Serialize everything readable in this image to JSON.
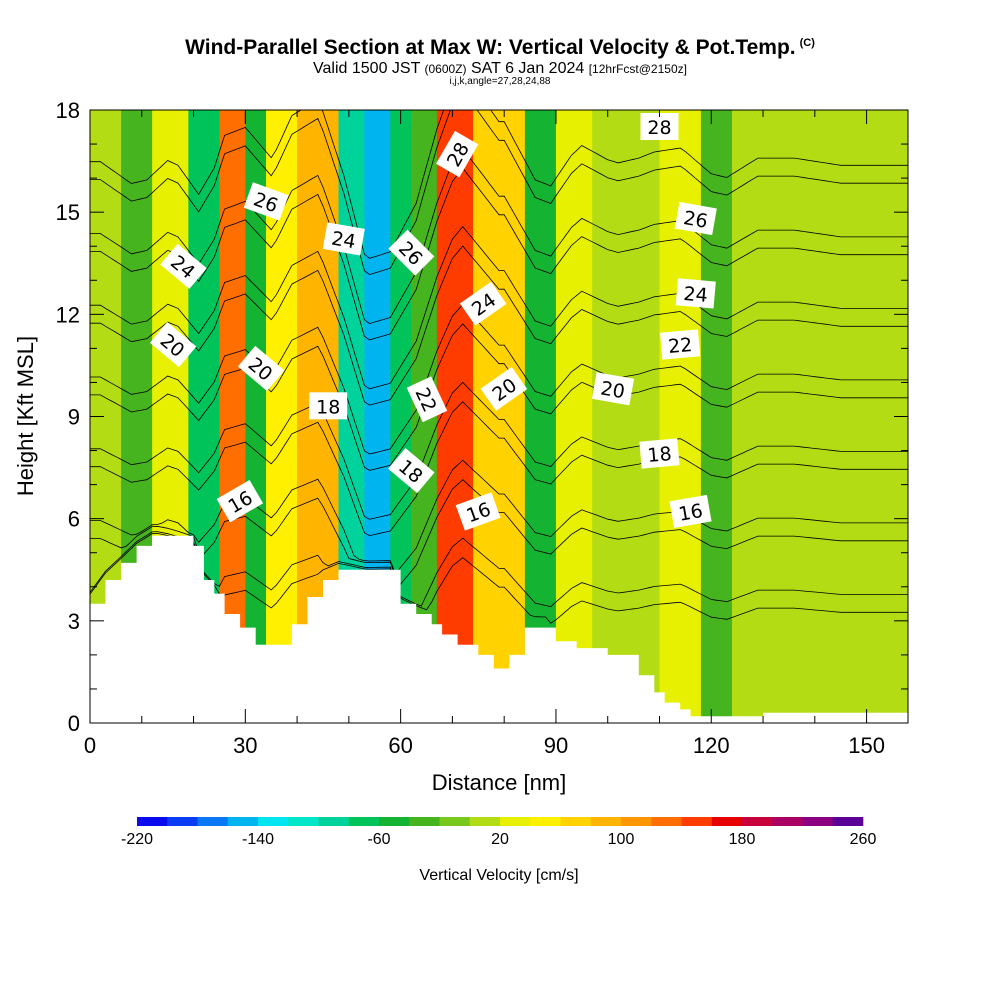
{
  "header": {
    "title": "Wind-Parallel Section at Max W: Vertical Velocity & Pot.Temp.",
    "copyright": "(C)",
    "subtitle_main": "Valid 1500 JST",
    "subtitle_utc": "(0600Z)",
    "subtitle_date": "SAT 6 Jan 2024",
    "subtitle_run": "[12hrFcst@2150z]",
    "params": "i,j,k,angle=27,28,24,88"
  },
  "chart_data": {
    "type": "heatmap",
    "title": "Wind-Parallel Section at Max W: Vertical Velocity & Pot.Temp.",
    "xlabel": "Distance [nm]",
    "ylabel": "Height [Kft MSL]",
    "xlim": [
      0,
      158
    ],
    "ylim": [
      0,
      18
    ],
    "xticks": [
      0,
      30,
      60,
      90,
      120,
      150
    ],
    "yticks": [
      0,
      3,
      6,
      9,
      12,
      15,
      18
    ],
    "colorbar": {
      "label": "Vertical Velocity [cm/s]",
      "min": -220,
      "max": 260,
      "step": 20,
      "tick_values": [
        -220,
        -140,
        -60,
        20,
        100,
        180,
        260
      ],
      "tick_labels": [
        "-220",
        "-140",
        "-60",
        "20",
        "100",
        "180",
        "260"
      ],
      "colors": [
        "#0a0aef",
        "#0a3cf5",
        "#0a78f5",
        "#00b4f0",
        "#00e6f0",
        "#00e6c8",
        "#00d29b",
        "#00c35a",
        "#14b432",
        "#46b41e",
        "#78c81e",
        "#b4dc14",
        "#e6f000",
        "#fff000",
        "#ffd200",
        "#ffb400",
        "#ff9600",
        "#ff6e00",
        "#ff3c00",
        "#e60000",
        "#c8003c",
        "#aa0064",
        "#8c0082",
        "#5a0096"
      ]
    },
    "velocity_bands": [
      {
        "x": [
          0,
          6
        ],
        "w": 5
      },
      {
        "x": [
          6,
          12
        ],
        "w": -40
      },
      {
        "x": [
          12,
          19
        ],
        "w": 20
      },
      {
        "x": [
          19,
          25
        ],
        "w": -70
      },
      {
        "x": [
          25,
          30
        ],
        "w": 130
      },
      {
        "x": [
          30,
          34
        ],
        "w": -45
      },
      {
        "x": [
          34,
          40
        ],
        "w": 55
      },
      {
        "x": [
          40,
          48
        ],
        "w": 95
      },
      {
        "x": [
          48,
          53
        ],
        "w": -100
      },
      {
        "x": [
          53,
          58
        ],
        "w": -150
      },
      {
        "x": [
          58,
          62
        ],
        "w": -80
      },
      {
        "x": [
          62,
          67
        ],
        "w": -30
      },
      {
        "x": [
          67,
          74
        ],
        "w": 150
      },
      {
        "x": [
          74,
          84
        ],
        "w": 60
      },
      {
        "x": [
          84,
          90
        ],
        "w": -60
      },
      {
        "x": [
          90,
          97
        ],
        "w": 35
      },
      {
        "x": [
          97,
          104
        ],
        "w": 0
      },
      {
        "x": [
          104,
          110
        ],
        "w": 15
      },
      {
        "x": [
          110,
          118
        ],
        "w": 25
      },
      {
        "x": [
          118,
          124
        ],
        "w": -30
      },
      {
        "x": [
          124,
          140
        ],
        "w": 10
      },
      {
        "x": [
          140,
          158
        ],
        "w": 0
      }
    ],
    "terrain": {
      "x": [
        0,
        3,
        6,
        9,
        12,
        13,
        20,
        22,
        24,
        26,
        29,
        32,
        35,
        39,
        42,
        45,
        48,
        58,
        60,
        63,
        66,
        68,
        71,
        75,
        78,
        81,
        84,
        88,
        90,
        94,
        100,
        106,
        109,
        111,
        114,
        116,
        120,
        130,
        158
      ],
      "height": [
        3.5,
        4.2,
        4.7,
        5.2,
        5.5,
        5.5,
        5.2,
        4.2,
        3.8,
        3.2,
        2.8,
        2.3,
        2.3,
        2.9,
        3.7,
        4.2,
        4.5,
        4.5,
        3.5,
        3.2,
        2.9,
        2.6,
        2.3,
        2.0,
        1.6,
        2.0,
        2.8,
        2.8,
        2.4,
        2.2,
        2.0,
        1.4,
        0.9,
        0.6,
        0.4,
        0.2,
        0.2,
        0.3,
        0.3
      ]
    },
    "isentrope_labels": [
      {
        "value": "16",
        "x": 29,
        "y": 6.5,
        "angle": -30
      },
      {
        "value": "16",
        "x": 75,
        "y": 6.2,
        "angle": -20
      },
      {
        "value": "16",
        "x": 116,
        "y": 6.2,
        "angle": -10
      },
      {
        "value": "18",
        "x": 46,
        "y": 9.3,
        "angle": 0
      },
      {
        "value": "18",
        "x": 62,
        "y": 7.4,
        "angle": 40
      },
      {
        "value": "18",
        "x": 110,
        "y": 7.9,
        "angle": -5
      },
      {
        "value": "20",
        "x": 16,
        "y": 11.1,
        "angle": 40
      },
      {
        "value": "20",
        "x": 33,
        "y": 10.4,
        "angle": 40
      },
      {
        "value": "20",
        "x": 80,
        "y": 9.8,
        "angle": -35
      },
      {
        "value": "20",
        "x": 101,
        "y": 9.8,
        "angle": 10
      },
      {
        "value": "22",
        "x": 65,
        "y": 9.5,
        "angle": 65
      },
      {
        "value": "22",
        "x": 114,
        "y": 11.1,
        "angle": -5
      },
      {
        "value": "24",
        "x": 18,
        "y": 13.4,
        "angle": 40
      },
      {
        "value": "24",
        "x": 49,
        "y": 14.2,
        "angle": 10
      },
      {
        "value": "24",
        "x": 76,
        "y": 12.3,
        "angle": -35
      },
      {
        "value": "24",
        "x": 117,
        "y": 12.6,
        "angle": 5
      },
      {
        "value": "26",
        "x": 34,
        "y": 15.3,
        "angle": 20
      },
      {
        "value": "26",
        "x": 62,
        "y": 13.8,
        "angle": 45
      },
      {
        "value": "26",
        "x": 117,
        "y": 14.8,
        "angle": 10
      },
      {
        "value": "28",
        "x": 71,
        "y": 16.7,
        "angle": -60
      },
      {
        "value": "28",
        "x": 110,
        "y": 17.5,
        "angle": 0
      }
    ],
    "isentrope_values": [
      16,
      18,
      20,
      22,
      24,
      26,
      28
    ],
    "grid": false,
    "legend": "colorbar-bottom"
  }
}
